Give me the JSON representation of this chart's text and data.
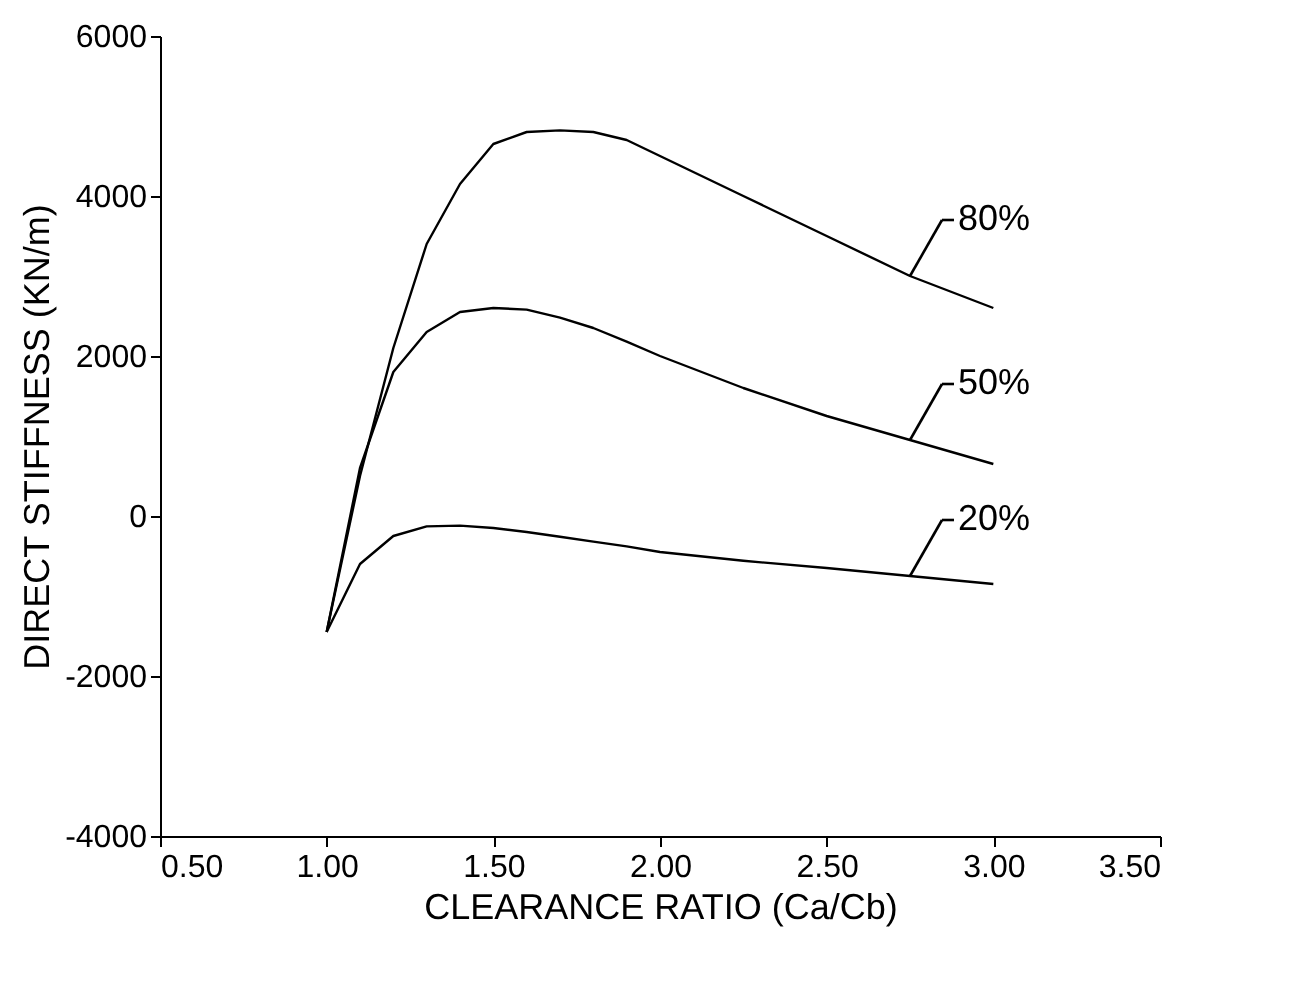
{
  "chart_data": {
    "type": "line",
    "xlabel": "CLEARANCE RATIO (Ca/Cb)",
    "ylabel": "DIRECT STIFFNESS (KN/m)",
    "xlim": [
      0.5,
      3.5
    ],
    "xticks": [
      {
        "value": 0.5,
        "label": "0.50"
      },
      {
        "value": 1,
        "label": "1.00"
      },
      {
        "value": 1.5,
        "label": "1.50"
      },
      {
        "value": 2,
        "label": "2.00"
      },
      {
        "value": 2.5,
        "label": "2.50"
      },
      {
        "value": 3,
        "label": "3.00"
      },
      {
        "value": 3.5,
        "label": "3.50"
      }
    ],
    "ylim": [
      -4000,
      6000
    ],
    "yticks": [
      -4000,
      -2000,
      0,
      2000,
      4000,
      6000
    ],
    "grid": false,
    "legend": "right",
    "marker": "none",
    "line_style": "solid",
    "x": [
      1.0,
      1.1,
      1.2,
      1.3,
      1.4,
      1.5,
      1.6,
      1.7,
      1.8,
      1.9,
      2.0,
      2.25,
      2.5,
      2.75,
      3.0
    ],
    "series": [
      {
        "name": "80%",
        "color": "#000000",
        "values": [
          -1450,
          500,
          2100,
          3400,
          4150,
          4650,
          4800,
          4820,
          4800,
          4700,
          4500,
          4000,
          3500,
          3000,
          2600
        ]
      },
      {
        "name": "50%",
        "color": "#000000",
        "values": [
          -1450,
          600,
          1800,
          2300,
          2550,
          2600,
          2580,
          2480,
          2350,
          2180,
          2000,
          1600,
          1250,
          950,
          650
        ]
      },
      {
        "name": "20%",
        "color": "#000000",
        "values": [
          -1450,
          -600,
          -250,
          -130,
          -120,
          -150,
          -200,
          -260,
          -320,
          -380,
          -450,
          -560,
          -650,
          -750,
          -850
        ]
      }
    ]
  }
}
